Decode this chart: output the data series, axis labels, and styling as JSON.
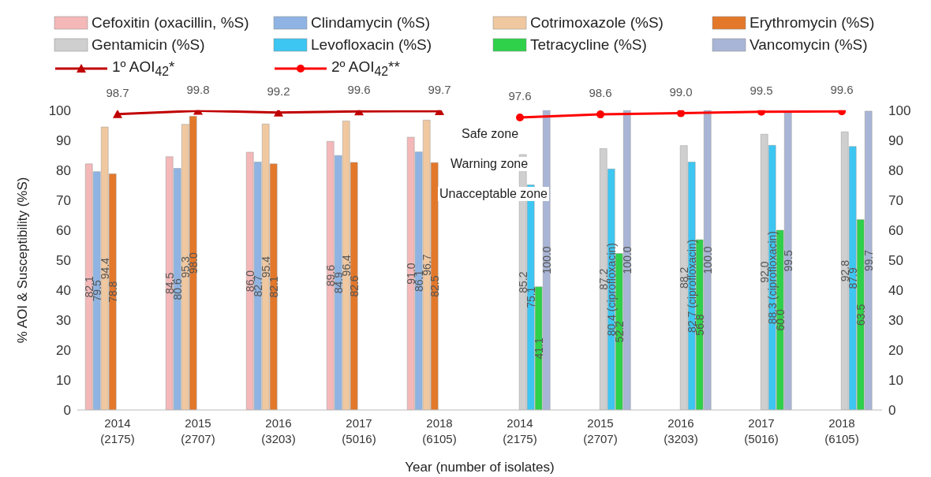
{
  "chart_data": {
    "type": "bar",
    "categories": [
      "2014\n(2175)",
      "2015\n(2707)",
      "2016\n(3203)",
      "2017\n(5016)",
      "2018\n(6105)",
      "2014\n(2175)",
      "2015\n(2707)",
      "2016\n(3203)",
      "2017\n(5016)",
      "2018\n(6105)"
    ],
    "xlabel": "Year (number of isolates)",
    "ylabel": "% AOI & Susceptibility (%S)",
    "ylim": [
      0,
      100
    ],
    "yticks": [
      0,
      10,
      20,
      30,
      40,
      50,
      60,
      70,
      80,
      90,
      100
    ],
    "y2lim": [
      0,
      100
    ],
    "y2ticks": [
      0,
      10,
      20,
      30,
      40,
      50,
      60,
      70,
      80,
      90,
      100
    ],
    "grid": false,
    "legend": "top",
    "annotations": [
      "Safe zone",
      "Warning zone",
      "Unacceptable zone"
    ],
    "series": [
      {
        "name": "Cefoxitin (oxacillin, %S)",
        "color": "#f4b8b8",
        "values": [
          82.1,
          84.5,
          86.0,
          89.6,
          91.0,
          null,
          null,
          null,
          null,
          null
        ],
        "value_labels": [
          "82.1",
          "84.5",
          "86.0",
          "89.6",
          "91.0",
          null,
          null,
          null,
          null,
          null
        ]
      },
      {
        "name": "Clindamycin (%S)",
        "color": "#8fb4e3",
        "values": [
          79.5,
          80.6,
          82.7,
          84.9,
          86.1,
          null,
          null,
          null,
          null,
          null
        ],
        "value_labels": [
          "79.5",
          "80.6",
          "82.7",
          "84.9",
          "86.1",
          null,
          null,
          null,
          null,
          null
        ]
      },
      {
        "name": "Cotrimoxazole (%S)",
        "color": "#f0c8a0",
        "values": [
          94.4,
          95.3,
          95.4,
          96.4,
          96.7,
          null,
          null,
          null,
          null,
          null
        ],
        "value_labels": [
          "94.4",
          "95.3",
          "95.4",
          "96.4",
          "96.7",
          null,
          null,
          null,
          null,
          null
        ]
      },
      {
        "name": "Erythromycin (%S)",
        "color": "#e3782a",
        "values": [
          78.8,
          98.0,
          82.1,
          82.6,
          82.5,
          null,
          null,
          null,
          null,
          null
        ],
        "value_labels": [
          "78.8",
          "98.0",
          "82.1",
          "82.6",
          "82.5",
          null,
          null,
          null,
          null,
          null
        ]
      },
      {
        "name": "Gentamicin (%S)",
        "color": "#cfcfcf",
        "values": [
          null,
          null,
          null,
          null,
          null,
          85.2,
          87.2,
          88.2,
          92.0,
          92.8
        ],
        "value_labels": [
          null,
          null,
          null,
          null,
          null,
          "85.2",
          "87.2",
          "88.2",
          "92.0",
          "92.8"
        ]
      },
      {
        "name": "Levofloxacin (%S)",
        "color": "#3ec6f2",
        "values": [
          null,
          null,
          null,
          null,
          null,
          75.1,
          80.4,
          82.7,
          88.3,
          87.9
        ],
        "value_labels": [
          null,
          null,
          null,
          null,
          null,
          "75.1",
          "80.4 (ciprofloxacin)",
          "82.7 (ciprofloxacin)",
          "88.3 (ciprofloxacin)",
          "87.9"
        ]
      },
      {
        "name": "Tetracycline (%S)",
        "color": "#2fd04a",
        "values": [
          null,
          null,
          null,
          null,
          null,
          41.1,
          52.2,
          56.8,
          60.0,
          63.5
        ],
        "value_labels": [
          null,
          null,
          null,
          null,
          null,
          "41.1",
          "52.2",
          "56.8",
          "60.0",
          "63.5"
        ]
      },
      {
        "name": "Vancomycin (%S)",
        "color": "#a9b5d6",
        "values": [
          null,
          null,
          null,
          null,
          null,
          100.0,
          100.0,
          100.0,
          99.5,
          99.7
        ],
        "value_labels": [
          null,
          null,
          null,
          null,
          null,
          "100.0",
          "100.0",
          "100.0",
          "99.5",
          "99.7"
        ]
      },
      {
        "name": "1º AOI$_{42}$*",
        "type": "line",
        "marker": "triangle",
        "color": "#c00000",
        "values": [
          98.7,
          99.8,
          99.2,
          99.6,
          99.7,
          null,
          null,
          null,
          null,
          null
        ],
        "value_labels": [
          "98.7",
          "99.8",
          "99.2",
          "99.6",
          "99.7",
          null,
          null,
          null,
          null,
          null
        ]
      },
      {
        "name": "2º AOI$_{42}$**",
        "type": "line",
        "marker": "circle",
        "color": "#ff0000",
        "values": [
          null,
          null,
          null,
          null,
          null,
          97.6,
          98.6,
          99.0,
          99.5,
          99.6
        ],
        "value_labels": [
          null,
          null,
          null,
          null,
          null,
          "97.6",
          "98.6",
          "99.0",
          "99.5",
          "99.6"
        ]
      }
    ]
  }
}
